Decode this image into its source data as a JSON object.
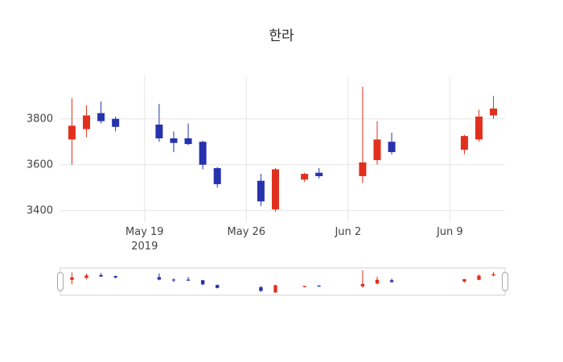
{
  "chart_data": {
    "type": "candlestick",
    "title": "한라",
    "x_date_ticks": [
      {
        "date": "2019-05-19",
        "label": "May 19",
        "sub": "2019"
      },
      {
        "date": "2019-05-26",
        "label": "May 26"
      },
      {
        "date": "2019-06-02",
        "label": "Jun 2"
      },
      {
        "date": "2019-06-09",
        "label": "Jun 9"
      }
    ],
    "y_ticks": [
      3400,
      3600,
      3800
    ],
    "ylim": [
      3350,
      3985
    ],
    "grid": true,
    "legend": false,
    "rangeslider": true,
    "colors": {
      "increasing": "#e1301e",
      "decreasing": "#2732ad",
      "grid": "#e5e5e5",
      "tick_text": "#444444",
      "title_text": "#2a2a2a",
      "rangeslider_border": "#d0d0d0"
    },
    "ohlc": [
      {
        "date": "2019-05-14",
        "open": 3710,
        "high": 3890,
        "low": 3600,
        "close": 3770
      },
      {
        "date": "2019-05-15",
        "open": 3755,
        "high": 3860,
        "low": 3720,
        "close": 3815
      },
      {
        "date": "2019-05-16",
        "open": 3825,
        "high": 3875,
        "low": 3780,
        "close": 3790
      },
      {
        "date": "2019-05-17",
        "open": 3800,
        "high": 3810,
        "low": 3745,
        "close": 3765
      },
      {
        "date": "2019-05-20",
        "open": 3775,
        "high": 3865,
        "low": 3700,
        "close": 3715
      },
      {
        "date": "2019-05-21",
        "open": 3715,
        "high": 3745,
        "low": 3655,
        "close": 3695
      },
      {
        "date": "2019-05-22",
        "open": 3715,
        "high": 3780,
        "low": 3685,
        "close": 3690
      },
      {
        "date": "2019-05-23",
        "open": 3700,
        "high": 3705,
        "low": 3580,
        "close": 3600
      },
      {
        "date": "2019-05-24",
        "open": 3585,
        "high": 3590,
        "low": 3500,
        "close": 3515
      },
      {
        "date": "2019-05-27",
        "open": 3530,
        "high": 3560,
        "low": 3420,
        "close": 3440
      },
      {
        "date": "2019-05-28",
        "open": 3405,
        "high": 3585,
        "low": 3395,
        "close": 3580
      },
      {
        "date": "2019-05-30",
        "open": 3535,
        "high": 3565,
        "low": 3525,
        "close": 3560
      },
      {
        "date": "2019-05-31",
        "open": 3565,
        "high": 3585,
        "low": 3540,
        "close": 3550
      },
      {
        "date": "2019-06-03",
        "open": 3550,
        "high": 3940,
        "low": 3520,
        "close": 3610
      },
      {
        "date": "2019-06-04",
        "open": 3620,
        "high": 3790,
        "low": 3600,
        "close": 3710
      },
      {
        "date": "2019-06-05",
        "open": 3700,
        "high": 3740,
        "low": 3645,
        "close": 3655
      },
      {
        "date": "2019-06-10",
        "open": 3665,
        "high": 3730,
        "low": 3645,
        "close": 3725
      },
      {
        "date": "2019-06-11",
        "open": 3710,
        "high": 3840,
        "low": 3700,
        "close": 3810
      },
      {
        "date": "2019-06-12",
        "open": 3815,
        "high": 3900,
        "low": 3800,
        "close": 3845
      }
    ]
  }
}
